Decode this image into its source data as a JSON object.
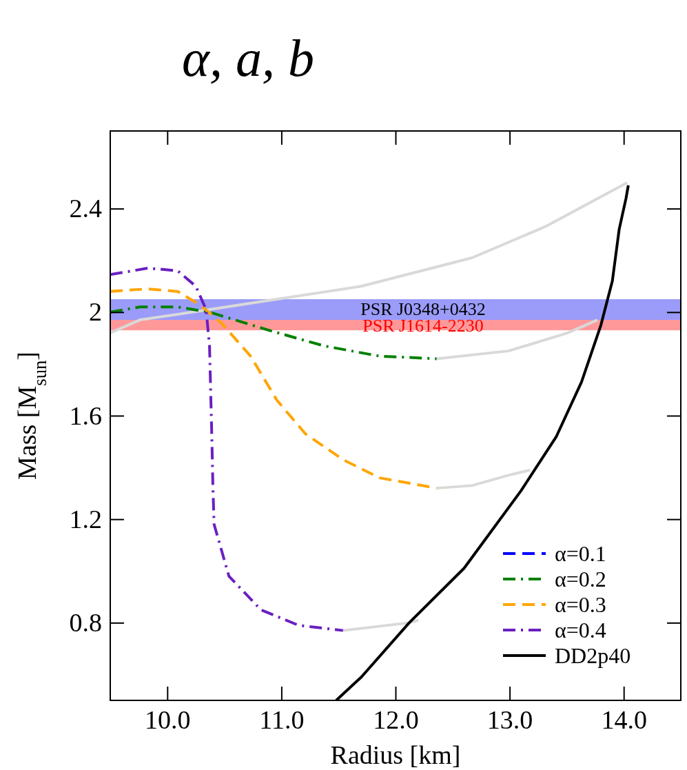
{
  "chart_data": {
    "type": "line",
    "title": "α, a, b",
    "xlabel": "Radius [km]",
    "ylabel": "Mass [M$_{sun}$]",
    "xlim": [
      9.5,
      14.5
    ],
    "ylim": [
      0.5,
      2.7
    ],
    "xticks": [
      {
        "value": 10,
        "label": "10.0"
      },
      {
        "value": 11,
        "label": "11.0"
      },
      {
        "value": 12,
        "label": "12.0"
      },
      {
        "value": 13,
        "label": "13.0"
      },
      {
        "value": 14,
        "label": "14.0"
      }
    ],
    "yticks": [
      0.8,
      1.2,
      1.6,
      2,
      2.4
    ],
    "grid": false,
    "legend": "bottom right",
    "bands": [
      {
        "axis": "y",
        "from": 1.93,
        "to": 2.01,
        "label": "PSR J1614-2230",
        "color": "#ff9999"
      },
      {
        "axis": "y",
        "from": 1.97,
        "to": 2.05,
        "label": "PSR J0348+0432",
        "color": "#9b9bfa"
      }
    ],
    "series": [
      {
        "color": "#d9d9d9",
        "line_style": "solid",
        "x": [
          9.5,
          9.76,
          10.37,
          11.7,
          12.67,
          13.31,
          14.03
        ],
        "values": [
          1.92,
          1.97,
          2.01,
          2.1,
          2.21,
          2.33,
          2.5
        ]
      },
      {
        "color": "#d9d9d9",
        "line_style": "solid",
        "x": [
          12.36,
          12.99,
          13.51,
          13.77
        ],
        "values": [
          1.82,
          1.85,
          1.92,
          1.97
        ]
      },
      {
        "color": "#d9d9d9",
        "line_style": "solid",
        "x": [
          12.36,
          12.67,
          12.99,
          13.18
        ],
        "values": [
          1.32,
          1.33,
          1.37,
          1.39
        ]
      },
      {
        "color": "#d9d9d9",
        "line_style": "solid",
        "x": [
          11.54,
          12.12,
          12.2
        ],
        "values": [
          0.77,
          0.8,
          0.81
        ]
      },
      {
        "name": "α=0.1",
        "color": "#0000ff",
        "line_style": "dashed"
      },
      {
        "name": "α=0.2",
        "color": "#008000",
        "line_style": "dashdot",
        "x": [
          9.5,
          9.76,
          10.09,
          10.37,
          10.89,
          11.37,
          11.86,
          12.36
        ],
        "values": [
          2.0,
          2.02,
          2.02,
          2.0,
          1.93,
          1.87,
          1.83,
          1.82
        ]
      },
      {
        "name": "α=0.3",
        "color": "#ffa500",
        "line_style": "dashed",
        "x": [
          9.5,
          9.83,
          10.09,
          10.28,
          10.47,
          10.73,
          10.96,
          11.21,
          11.54,
          11.86,
          12.36
        ],
        "values": [
          2.08,
          2.09,
          2.08,
          2.03,
          1.96,
          1.83,
          1.66,
          1.53,
          1.43,
          1.36,
          1.32
        ]
      },
      {
        "name": "α=0.4",
        "color": "#6a1fc2",
        "line_style": "dashdot",
        "x": [
          9.5,
          9.83,
          10.09,
          10.25,
          10.34,
          10.37,
          10.39,
          10.4,
          10.41,
          10.54,
          10.82,
          11.15,
          11.54
        ],
        "values": [
          2.145,
          2.17,
          2.16,
          2.1,
          2.01,
          1.87,
          1.52,
          1.32,
          1.18,
          0.98,
          0.85,
          0.79,
          0.77
        ]
      },
      {
        "name": "DD2p40",
        "color": "#000000",
        "line_style": "solid",
        "x": [
          11.48,
          11.7,
          12.12,
          12.6,
          13.1,
          13.41,
          13.63,
          13.8,
          13.9,
          13.96,
          14.02,
          14.04
        ],
        "values": [
          0.5,
          0.59,
          0.8,
          1.01,
          1.31,
          1.52,
          1.73,
          1.95,
          2.12,
          2.32,
          2.44,
          2.49
        ]
      }
    ]
  }
}
